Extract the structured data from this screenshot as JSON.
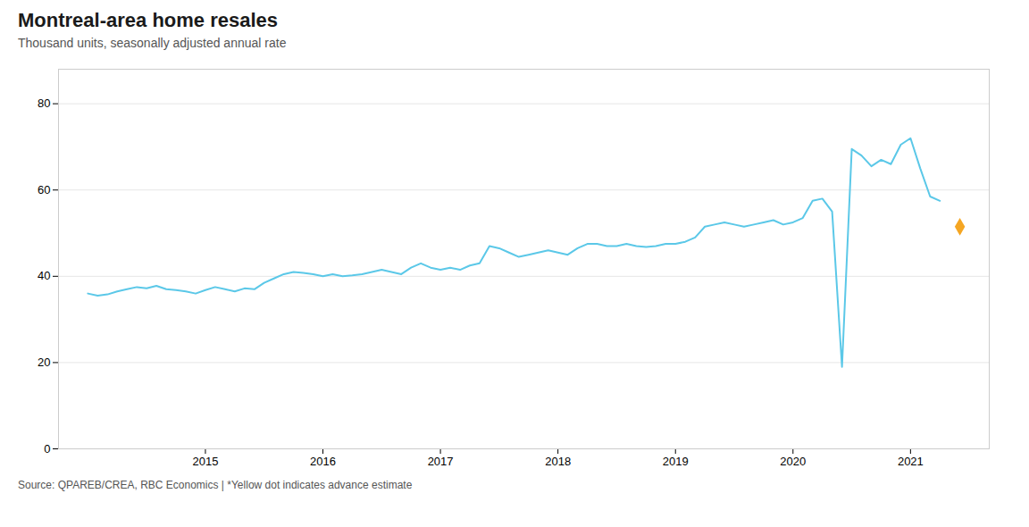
{
  "chart_data": {
    "type": "line",
    "title": "Montreal-area home resales",
    "subtitle": "Thousand units, seasonally adjusted annual rate",
    "caption": "Source: QPAREB/CREA, RBC Economics | *Yellow dot indicates advance estimate",
    "color": "#5BC8E8",
    "x": [
      2014.0,
      2014.083,
      2014.167,
      2014.25,
      2014.333,
      2014.417,
      2014.5,
      2014.583,
      2014.667,
      2014.75,
      2014.833,
      2014.917,
      2015.0,
      2015.083,
      2015.167,
      2015.25,
      2015.333,
      2015.417,
      2015.5,
      2015.583,
      2015.667,
      2015.75,
      2015.833,
      2015.917,
      2016.0,
      2016.083,
      2016.167,
      2016.25,
      2016.333,
      2016.417,
      2016.5,
      2016.583,
      2016.667,
      2016.75,
      2016.833,
      2016.917,
      2017.0,
      2017.083,
      2017.167,
      2017.25,
      2017.333,
      2017.417,
      2017.5,
      2017.583,
      2017.667,
      2017.75,
      2017.833,
      2017.917,
      2018.0,
      2018.083,
      2018.167,
      2018.25,
      2018.333,
      2018.417,
      2018.5,
      2018.583,
      2018.667,
      2018.75,
      2018.833,
      2018.917,
      2019.0,
      2019.083,
      2019.167,
      2019.25,
      2019.333,
      2019.417,
      2019.5,
      2019.583,
      2019.667,
      2019.75,
      2019.833,
      2019.917,
      2020.0,
      2020.083,
      2020.167,
      2020.25,
      2020.333,
      2020.417,
      2020.5,
      2020.583,
      2020.667,
      2020.75,
      2020.833,
      2020.917,
      2021.0,
      2021.083,
      2021.167,
      2021.25
    ],
    "values": [
      36.0,
      35.5,
      35.8,
      36.5,
      37.0,
      37.5,
      37.2,
      37.8,
      37.0,
      36.8,
      36.5,
      36.0,
      36.8,
      37.5,
      37.0,
      36.5,
      37.2,
      37.0,
      38.5,
      39.5,
      40.5,
      41.0,
      40.8,
      40.5,
      40.0,
      40.5,
      40.0,
      40.2,
      40.5,
      41.0,
      41.5,
      41.0,
      40.5,
      42.0,
      43.0,
      42.0,
      41.5,
      42.0,
      41.5,
      42.5,
      43.0,
      47.0,
      46.5,
      45.5,
      44.5,
      45.0,
      45.5,
      46.0,
      45.5,
      45.0,
      46.5,
      47.5,
      47.5,
      47.0,
      47.0,
      47.5,
      47.0,
      46.8,
      47.0,
      47.5,
      47.5,
      48.0,
      49.0,
      51.5,
      52.0,
      52.5,
      52.0,
      51.5,
      52.0,
      52.5,
      53.0,
      52.0,
      52.5,
      53.5,
      57.5,
      58.0,
      55.0,
      19.0,
      69.5,
      68.0,
      65.5,
      67.0,
      66.0,
      70.5,
      72.0,
      65.0,
      58.5,
      57.5
    ],
    "points": [
      {
        "x": 2021.42,
        "value": 51.5,
        "color": "#F5A623",
        "marker": "diamond"
      }
    ],
    "xlim": [
      2013.75,
      2021.67
    ],
    "xticks": [
      2015,
      2016,
      2017,
      2018,
      2019,
      2020,
      2021
    ],
    "ylim": [
      0,
      88
    ],
    "yticks": [
      0,
      20,
      40,
      60,
      80
    ],
    "grid": true
  }
}
